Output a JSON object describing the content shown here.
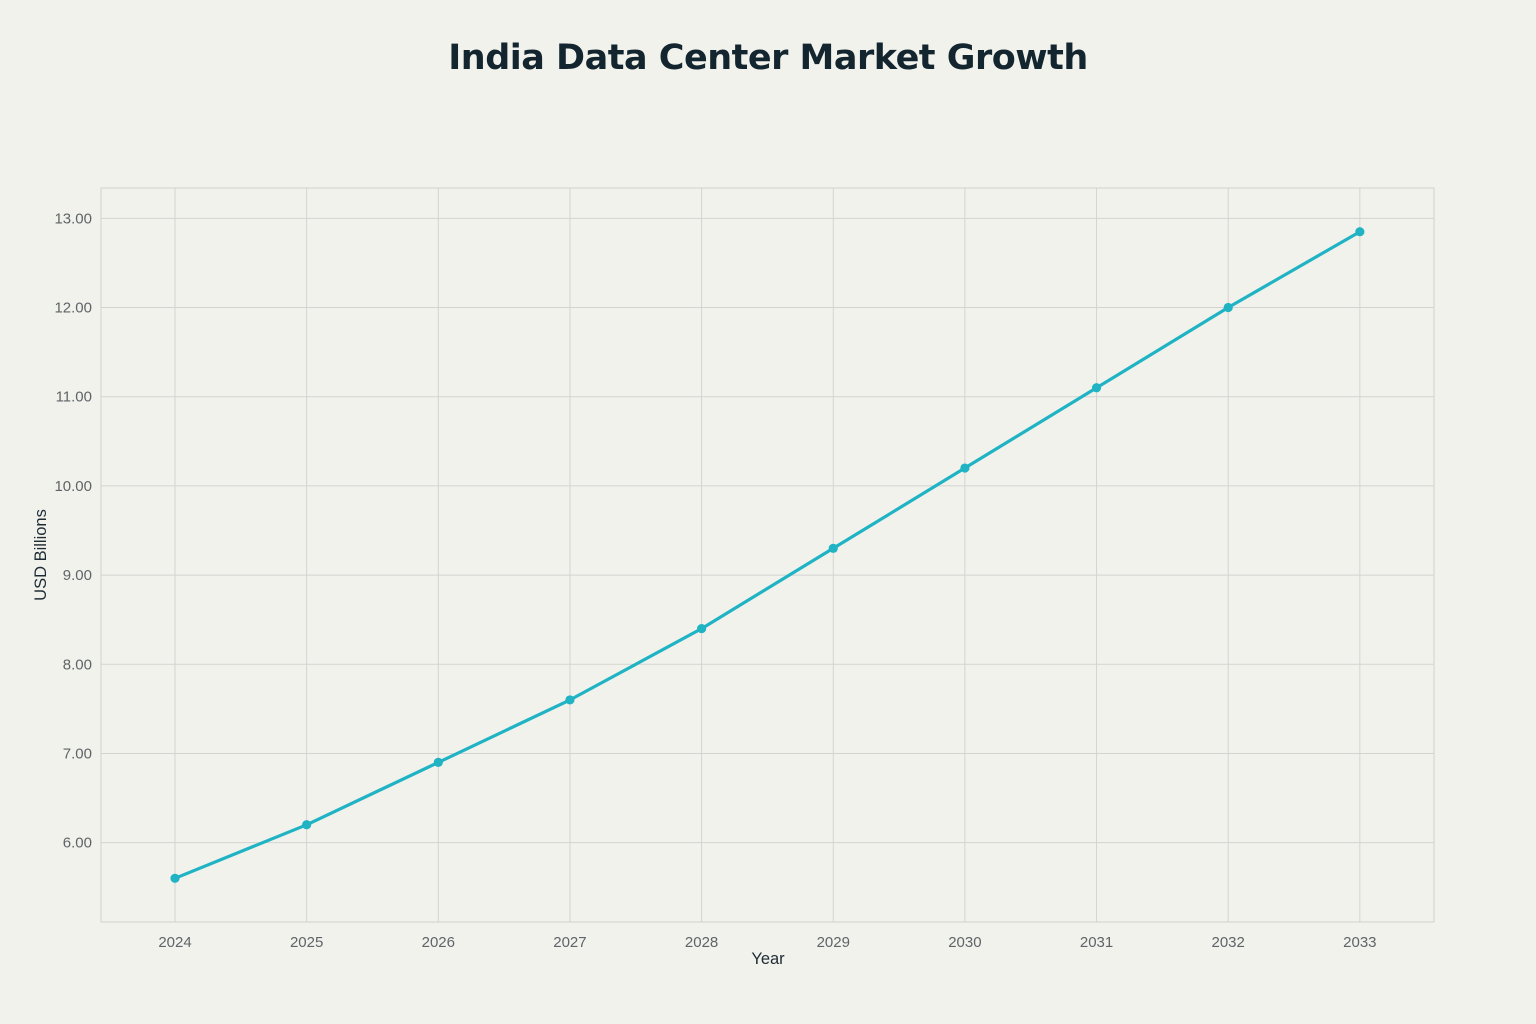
{
  "chart_data": {
    "type": "line",
    "title": "India Data Center Market Growth",
    "xlabel": "Year",
    "ylabel": "USD Billions",
    "x": [
      "2024",
      "2025",
      "2026",
      "2027",
      "2028",
      "2029",
      "2030",
      "2031",
      "2032",
      "2033"
    ],
    "series": [
      {
        "values": [
          5.6,
          6.2,
          6.9,
          7.6,
          8.4,
          9.3,
          10.2,
          11.1,
          12.0,
          12.85
        ],
        "color": "#1fb3c4"
      }
    ],
    "ylim": [
      5.11,
      13.34
    ],
    "yticks": [
      "6.00",
      "7.00",
      "8.00",
      "9.00",
      "10.00",
      "11.00",
      "12.00",
      "13.00"
    ],
    "grid": true,
    "legend": "none"
  }
}
